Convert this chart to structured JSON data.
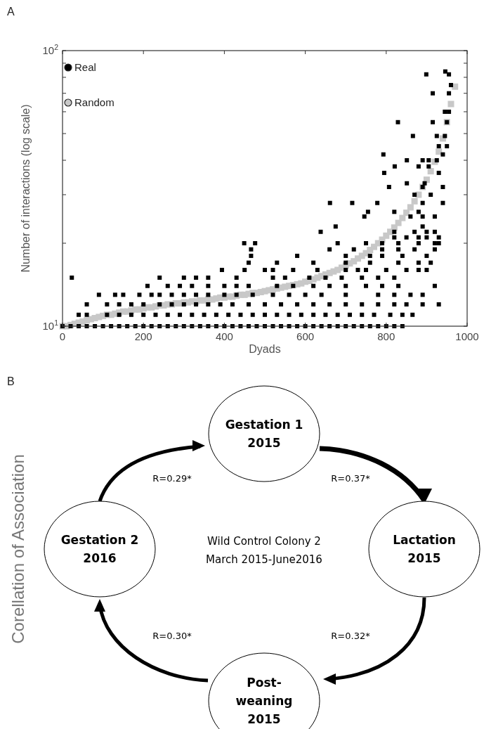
{
  "chart_data": [
    {
      "type": "scatter",
      "title": "A",
      "xlabel": "Dyads",
      "ylabel": "Number of interactions (log scale)",
      "xlim": [
        0,
        1000
      ],
      "xticks": [
        0,
        200,
        400,
        600,
        800,
        1000
      ],
      "ylim": [
        10,
        100
      ],
      "yticks": [
        {
          "value": 10,
          "label": "10$^{1}$"
        },
        {
          "value": 20,
          "label": null
        },
        {
          "value": 30,
          "label": null
        },
        {
          "value": 40,
          "label": null
        },
        {
          "value": 50,
          "label": null
        },
        {
          "value": 60,
          "label": null
        },
        {
          "value": 70,
          "label": null
        },
        {
          "value": 80,
          "label": null
        },
        {
          "value": 90,
          "label": null
        },
        {
          "value": 100,
          "label": "10$^{2}$"
        }
      ],
      "log": "y",
      "legend": "top left",
      "marker": "square",
      "grid": false,
      "series": [
        {
          "name": "Real",
          "color": "#000000",
          "x": [
            0,
            20,
            40,
            60,
            80,
            100,
            120,
            140,
            160,
            180,
            200,
            220,
            240,
            260,
            280,
            300,
            320,
            340,
            360,
            380,
            400,
            420,
            440,
            460,
            480,
            500,
            520,
            540,
            560,
            580,
            600,
            620,
            640,
            660,
            680,
            700,
            720,
            740,
            760,
            780,
            800,
            820,
            840,
            40,
            60,
            110,
            140,
            170,
            200,
            230,
            260,
            290,
            320,
            350,
            380,
            410,
            440,
            470,
            500,
            530,
            560,
            590,
            620,
            650,
            680,
            710,
            740,
            770,
            810,
            840,
            865,
            60,
            110,
            140,
            170,
            200,
            240,
            270,
            300,
            330,
            360,
            390,
            420,
            460,
            500,
            540,
            580,
            620,
            660,
            700,
            740,
            780,
            820,
            850,
            890,
            930,
            90,
            130,
            150,
            190,
            220,
            240,
            270,
            300,
            330,
            360,
            400,
            430,
            470,
            520,
            560,
            600,
            640,
            700,
            780,
            820,
            860,
            890,
            210,
            260,
            290,
            320,
            360,
            400,
            430,
            460,
            530,
            570,
            620,
            660,
            700,
            750,
            790,
            830,
            920,
            23,
            240,
            300,
            330,
            360,
            430,
            520,
            550,
            610,
            650,
            690,
            740,
            780,
            820,
            394,
            450,
            500,
            520,
            570,
            630,
            700,
            730,
            750,
            800,
            850,
            880,
            900,
            460,
            530,
            620,
            700,
            760,
            830,
            880,
            910,
            466,
            580,
            700,
            760,
            790,
            840,
            900,
            466,
            660,
            720,
            790,
            830,
            870,
            920,
            449,
            476,
            680,
            750,
            790,
            830,
            880,
            920,
            930,
            820,
            850,
            880,
            900,
            930,
            638,
            820,
            870,
            900,
            920,
            675,
            890,
            746,
            860,
            890,
            920,
            755,
            820,
            880,
            661,
            716,
            778,
            890,
            940,
            870,
            910,
            807,
            890,
            940,
            851,
            895,
            795,
            930,
            821,
            880,
            905,
            851,
            890,
            905,
            925,
            793,
            940,
            930,
            950,
            866,
            925,
            945,
            829,
            915,
            950,
            945,
            955,
            915,
            955,
            960,
            899,
            955,
            946
          ],
          "values": [
            10,
            10,
            10,
            10,
            10,
            10,
            10,
            10,
            10,
            10,
            10,
            10,
            10,
            10,
            10,
            10,
            10,
            10,
            10,
            10,
            10,
            10,
            10,
            10,
            10,
            10,
            10,
            10,
            10,
            10,
            10,
            10,
            10,
            10,
            10,
            10,
            10,
            10,
            10,
            10,
            10,
            10,
            10,
            11,
            11,
            11,
            11,
            11,
            11,
            11,
            11,
            11,
            11,
            11,
            11,
            11,
            11,
            11,
            11,
            11,
            11,
            11,
            11,
            11,
            11,
            11,
            11,
            11,
            11,
            11,
            11,
            12,
            12,
            12,
            12,
            12,
            12,
            12,
            12,
            12,
            12,
            12,
            12,
            12,
            12,
            12,
            12,
            12,
            12,
            12,
            12,
            12,
            12,
            12,
            12,
            12,
            13,
            13,
            13,
            13,
            13,
            13,
            13,
            13,
            13,
            13,
            13,
            13,
            13,
            13,
            13,
            13,
            13,
            13,
            13,
            13,
            13,
            13,
            14,
            14,
            14,
            14,
            14,
            14,
            14,
            14,
            14,
            14,
            14,
            14,
            14,
            14,
            14,
            14,
            14,
            15,
            15,
            15,
            15,
            15,
            15,
            15,
            15,
            15,
            15,
            15,
            15,
            15,
            15,
            16,
            16,
            16,
            16,
            16,
            16,
            16,
            16,
            16,
            16,
            16,
            16,
            16,
            17,
            17,
            17,
            17,
            17,
            17,
            17,
            17,
            18,
            18,
            18,
            18,
            18,
            18,
            18,
            19,
            19,
            19,
            19,
            19,
            19,
            19,
            20,
            20,
            20,
            20,
            20,
            20,
            20,
            20,
            20,
            21,
            21,
            21,
            21,
            21,
            22,
            22,
            22,
            22,
            22,
            23,
            23,
            25,
            25,
            25,
            25,
            26,
            26,
            26,
            28,
            28,
            28,
            28,
            28,
            30,
            30,
            32,
            32,
            32,
            33,
            33,
            36,
            36,
            38,
            38,
            38,
            40,
            40,
            40,
            40,
            42,
            42,
            45,
            45,
            49,
            49,
            49,
            55,
            55,
            55,
            60,
            60,
            70,
            70,
            75,
            82,
            82,
            84
          ]
        },
        {
          "name": "Random",
          "color": "#c8c8c8",
          "x": [
            0,
            10,
            20,
            30,
            40,
            50,
            60,
            70,
            80,
            90,
            100,
            110,
            120,
            130,
            140,
            150,
            160,
            170,
            180,
            190,
            200,
            210,
            220,
            230,
            240,
            250,
            260,
            270,
            280,
            290,
            300,
            310,
            320,
            330,
            340,
            350,
            360,
            370,
            380,
            390,
            400,
            410,
            420,
            430,
            440,
            450,
            460,
            470,
            480,
            490,
            500,
            510,
            520,
            530,
            540,
            550,
            560,
            570,
            580,
            590,
            600,
            610,
            620,
            630,
            640,
            650,
            660,
            670,
            680,
            690,
            700,
            710,
            720,
            730,
            740,
            750,
            760,
            770,
            780,
            790,
            800,
            810,
            820,
            830,
            840,
            850,
            860,
            870,
            880,
            890,
            900,
            910,
            920,
            930,
            940,
            950,
            960,
            970
          ],
          "values": [
            10,
            10,
            10.1,
            10.2,
            10.3,
            10.4,
            10.5,
            10.6,
            10.7,
            10.8,
            10.9,
            11,
            11,
            11.1,
            11.2,
            11.3,
            11.3,
            11.4,
            11.5,
            11.5,
            11.6,
            11.7,
            11.7,
            11.8,
            11.9,
            11.9,
            12,
            12,
            12.1,
            12.1,
            12.2,
            12.2,
            12.3,
            12.3,
            12.4,
            12.4,
            12.5,
            12.5,
            12.6,
            12.7,
            12.7,
            12.8,
            12.8,
            12.9,
            13,
            13,
            13.1,
            13.2,
            13.2,
            13.3,
            13.4,
            13.5,
            13.6,
            13.7,
            13.8,
            13.9,
            14,
            14.1,
            14.2,
            14.3,
            14.5,
            14.6,
            14.8,
            15,
            15.2,
            15.4,
            15.6,
            15.8,
            16,
            16.3,
            16.6,
            16.9,
            17.2,
            17.6,
            18,
            18.4,
            18.9,
            19.4,
            20,
            20.6,
            21.3,
            22,
            22.8,
            23.7,
            24.7,
            25.8,
            27,
            28.4,
            30,
            32,
            34,
            36.5,
            39.5,
            43,
            48,
            55,
            64,
            74
          ]
        }
      ]
    },
    {
      "type": "other",
      "title": "B",
      "ylabel": "Corellation of Association",
      "categories": [
        "Gestation 1\n2015",
        "Lactation\n2015",
        "Post-\nweaning\n2015",
        "Gestation 2\n2016"
      ],
      "annotations": [
        "R=0.37*",
        "R=0.32*",
        "R=0.30*",
        "R=0.29*",
        "Wild Control Colony 2\nMarch 2015-June2016"
      ]
    }
  ]
}
